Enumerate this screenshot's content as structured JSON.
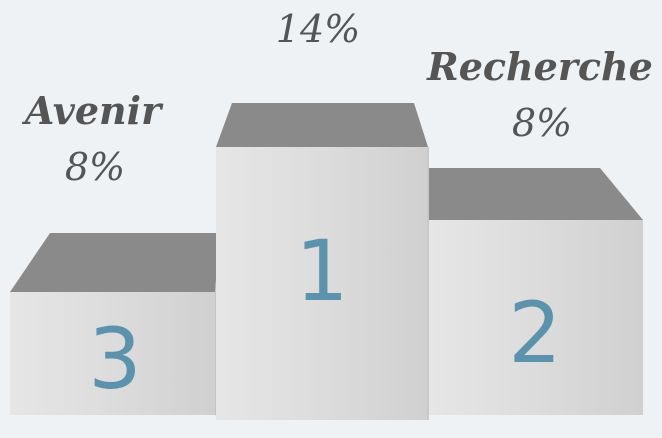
{
  "podium": [
    {
      "rank": "3",
      "name": "Avenir",
      "value": "8%"
    },
    {
      "rank": "1",
      "value": "14%"
    },
    {
      "rank": "2",
      "name": "Recherche",
      "value": "8%"
    }
  ]
}
